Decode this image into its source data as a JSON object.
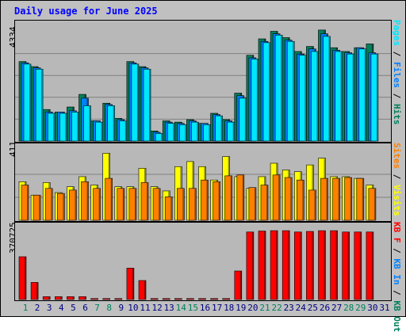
{
  "title": "Daily usage for June 2025",
  "colors": {
    "hits": "#00805c",
    "files": "#0080ff",
    "pages": "#00e6ff",
    "visits": "#ffff00",
    "sites": "#ff8000",
    "kb_in": "#ff0000",
    "weekend_label": "#00805c",
    "weekday_label": "#000080",
    "title": "#0000ff",
    "frame_bg": "#c0c0c0",
    "panel_bg": "#b8b8b8"
  },
  "chart_data": [
    {
      "type": "bar",
      "ymax_label": "4334",
      "ylim": [
        0,
        4334
      ],
      "legend": [
        {
          "label": "Pages",
          "color_key": "pages"
        },
        {
          "label": "Files",
          "color_key": "files"
        },
        {
          "label": "Hits",
          "color_key": "hits"
        }
      ],
      "categories": [
        "1",
        "2",
        "3",
        "4",
        "5",
        "6",
        "7",
        "8",
        "9",
        "10",
        "11",
        "12",
        "13",
        "14",
        "15",
        "16",
        "17",
        "18",
        "19",
        "20",
        "21",
        "22",
        "23",
        "24",
        "25",
        "26",
        "27",
        "28",
        "29",
        "30",
        "31"
      ],
      "series": [
        {
          "name": "Hits",
          "color_key": "hits",
          "values": [
            3150,
            2950,
            1250,
            1150,
            1350,
            1850,
            800,
            1500,
            900,
            3150,
            2950,
            400,
            800,
            750,
            850,
            700,
            1100,
            850,
            1900,
            3400,
            4050,
            4350,
            4100,
            3550,
            3750,
            4400,
            3700,
            3550,
            3700,
            3850,
            0
          ]
        },
        {
          "name": "Files",
          "color_key": "files",
          "values": [
            3100,
            2900,
            1150,
            1150,
            1200,
            1700,
            800,
            1450,
            850,
            3100,
            2900,
            350,
            750,
            700,
            800,
            700,
            1050,
            800,
            1800,
            3300,
            3950,
            4250,
            4000,
            3450,
            3650,
            4250,
            3600,
            3500,
            3700,
            3500,
            0
          ]
        },
        {
          "name": "Pages",
          "color_key": "pages",
          "values": [
            3050,
            2850,
            1100,
            1100,
            1150,
            1400,
            750,
            1400,
            800,
            3050,
            2850,
            300,
            700,
            650,
            750,
            650,
            1000,
            750,
            1700,
            3250,
            3900,
            4200,
            3950,
            3400,
            3550,
            4150,
            3550,
            3450,
            3650,
            3450,
            0
          ]
        }
      ]
    },
    {
      "type": "bar",
      "ymax_label": "411",
      "ylim": [
        0,
        411
      ],
      "legend": [
        {
          "label": "Sites",
          "color_key": "sites"
        },
        {
          "label": "Visits",
          "color_key": "visits"
        }
      ],
      "categories": [
        "1",
        "2",
        "3",
        "4",
        "5",
        "6",
        "7",
        "8",
        "9",
        "10",
        "11",
        "12",
        "13",
        "14",
        "15",
        "16",
        "17",
        "18",
        "19",
        "20",
        "21",
        "22",
        "23",
        "24",
        "25",
        "26",
        "27",
        "28",
        "29",
        "30",
        "31"
      ],
      "series": [
        {
          "name": "Visits",
          "color_key": "visits",
          "values": [
            230,
            150,
            225,
            165,
            200,
            260,
            210,
            400,
            200,
            200,
            310,
            200,
            175,
            320,
            350,
            320,
            240,
            380,
            260,
            190,
            260,
            340,
            300,
            290,
            330,
            370,
            260,
            260,
            250,
            210,
            0
          ]
        },
        {
          "name": "Sites",
          "color_key": "sites",
          "values": [
            210,
            150,
            190,
            160,
            180,
            230,
            190,
            250,
            190,
            190,
            225,
            190,
            140,
            190,
            190,
            240,
            230,
            265,
            270,
            195,
            210,
            270,
            255,
            240,
            180,
            250,
            250,
            255,
            250,
            190,
            0
          ]
        }
      ]
    },
    {
      "type": "bar",
      "ymax_label": "370725",
      "ylim": [
        0,
        370725
      ],
      "legend": [
        {
          "label": "KB F",
          "color_key": "kb_in"
        },
        {
          "label": "KB In",
          "color_key": "files"
        },
        {
          "label": "KB Out",
          "color_key": "hits"
        }
      ],
      "categories": [
        "1",
        "2",
        "3",
        "4",
        "5",
        "6",
        "7",
        "8",
        "9",
        "10",
        "11",
        "12",
        "13",
        "14",
        "15",
        "16",
        "17",
        "18",
        "19",
        "20",
        "21",
        "22",
        "23",
        "24",
        "25",
        "26",
        "27",
        "28",
        "29",
        "30",
        "31"
      ],
      "series": [
        {
          "name": "KB F",
          "color_key": "kb_in",
          "values": [
            225000,
            90000,
            15000,
            15000,
            15000,
            15000,
            5000,
            5000,
            5000,
            165000,
            100000,
            5000,
            5000,
            5000,
            5000,
            5000,
            5000,
            5000,
            150000,
            355000,
            360000,
            362000,
            362000,
            355000,
            358000,
            362000,
            362000,
            355000,
            355000,
            355000,
            0
          ]
        }
      ]
    }
  ],
  "axis": {
    "day_labels": [
      {
        "label": "1",
        "weekend": true
      },
      {
        "label": "2",
        "weekend": false
      },
      {
        "label": "3",
        "weekend": false
      },
      {
        "label": "4",
        "weekend": false
      },
      {
        "label": "5",
        "weekend": false
      },
      {
        "label": "6",
        "weekend": false
      },
      {
        "label": "7",
        "weekend": true
      },
      {
        "label": "8",
        "weekend": true
      },
      {
        "label": "9",
        "weekend": false
      },
      {
        "label": "10",
        "weekend": false
      },
      {
        "label": "11",
        "weekend": false
      },
      {
        "label": "12",
        "weekend": false
      },
      {
        "label": "13",
        "weekend": false
      },
      {
        "label": "14",
        "weekend": true
      },
      {
        "label": "15",
        "weekend": true
      },
      {
        "label": "16",
        "weekend": false
      },
      {
        "label": "17",
        "weekend": false
      },
      {
        "label": "18",
        "weekend": false
      },
      {
        "label": "19",
        "weekend": false
      },
      {
        "label": "20",
        "weekend": false
      },
      {
        "label": "21",
        "weekend": true
      },
      {
        "label": "22",
        "weekend": true
      },
      {
        "label": "23",
        "weekend": false
      },
      {
        "label": "24",
        "weekend": false
      },
      {
        "label": "25",
        "weekend": false
      },
      {
        "label": "26",
        "weekend": false
      },
      {
        "label": "27",
        "weekend": false
      },
      {
        "label": "28",
        "weekend": true
      },
      {
        "label": "29",
        "weekend": true
      },
      {
        "label": "30",
        "weekend": false
      },
      {
        "label": "31",
        "weekend": false
      }
    ]
  }
}
